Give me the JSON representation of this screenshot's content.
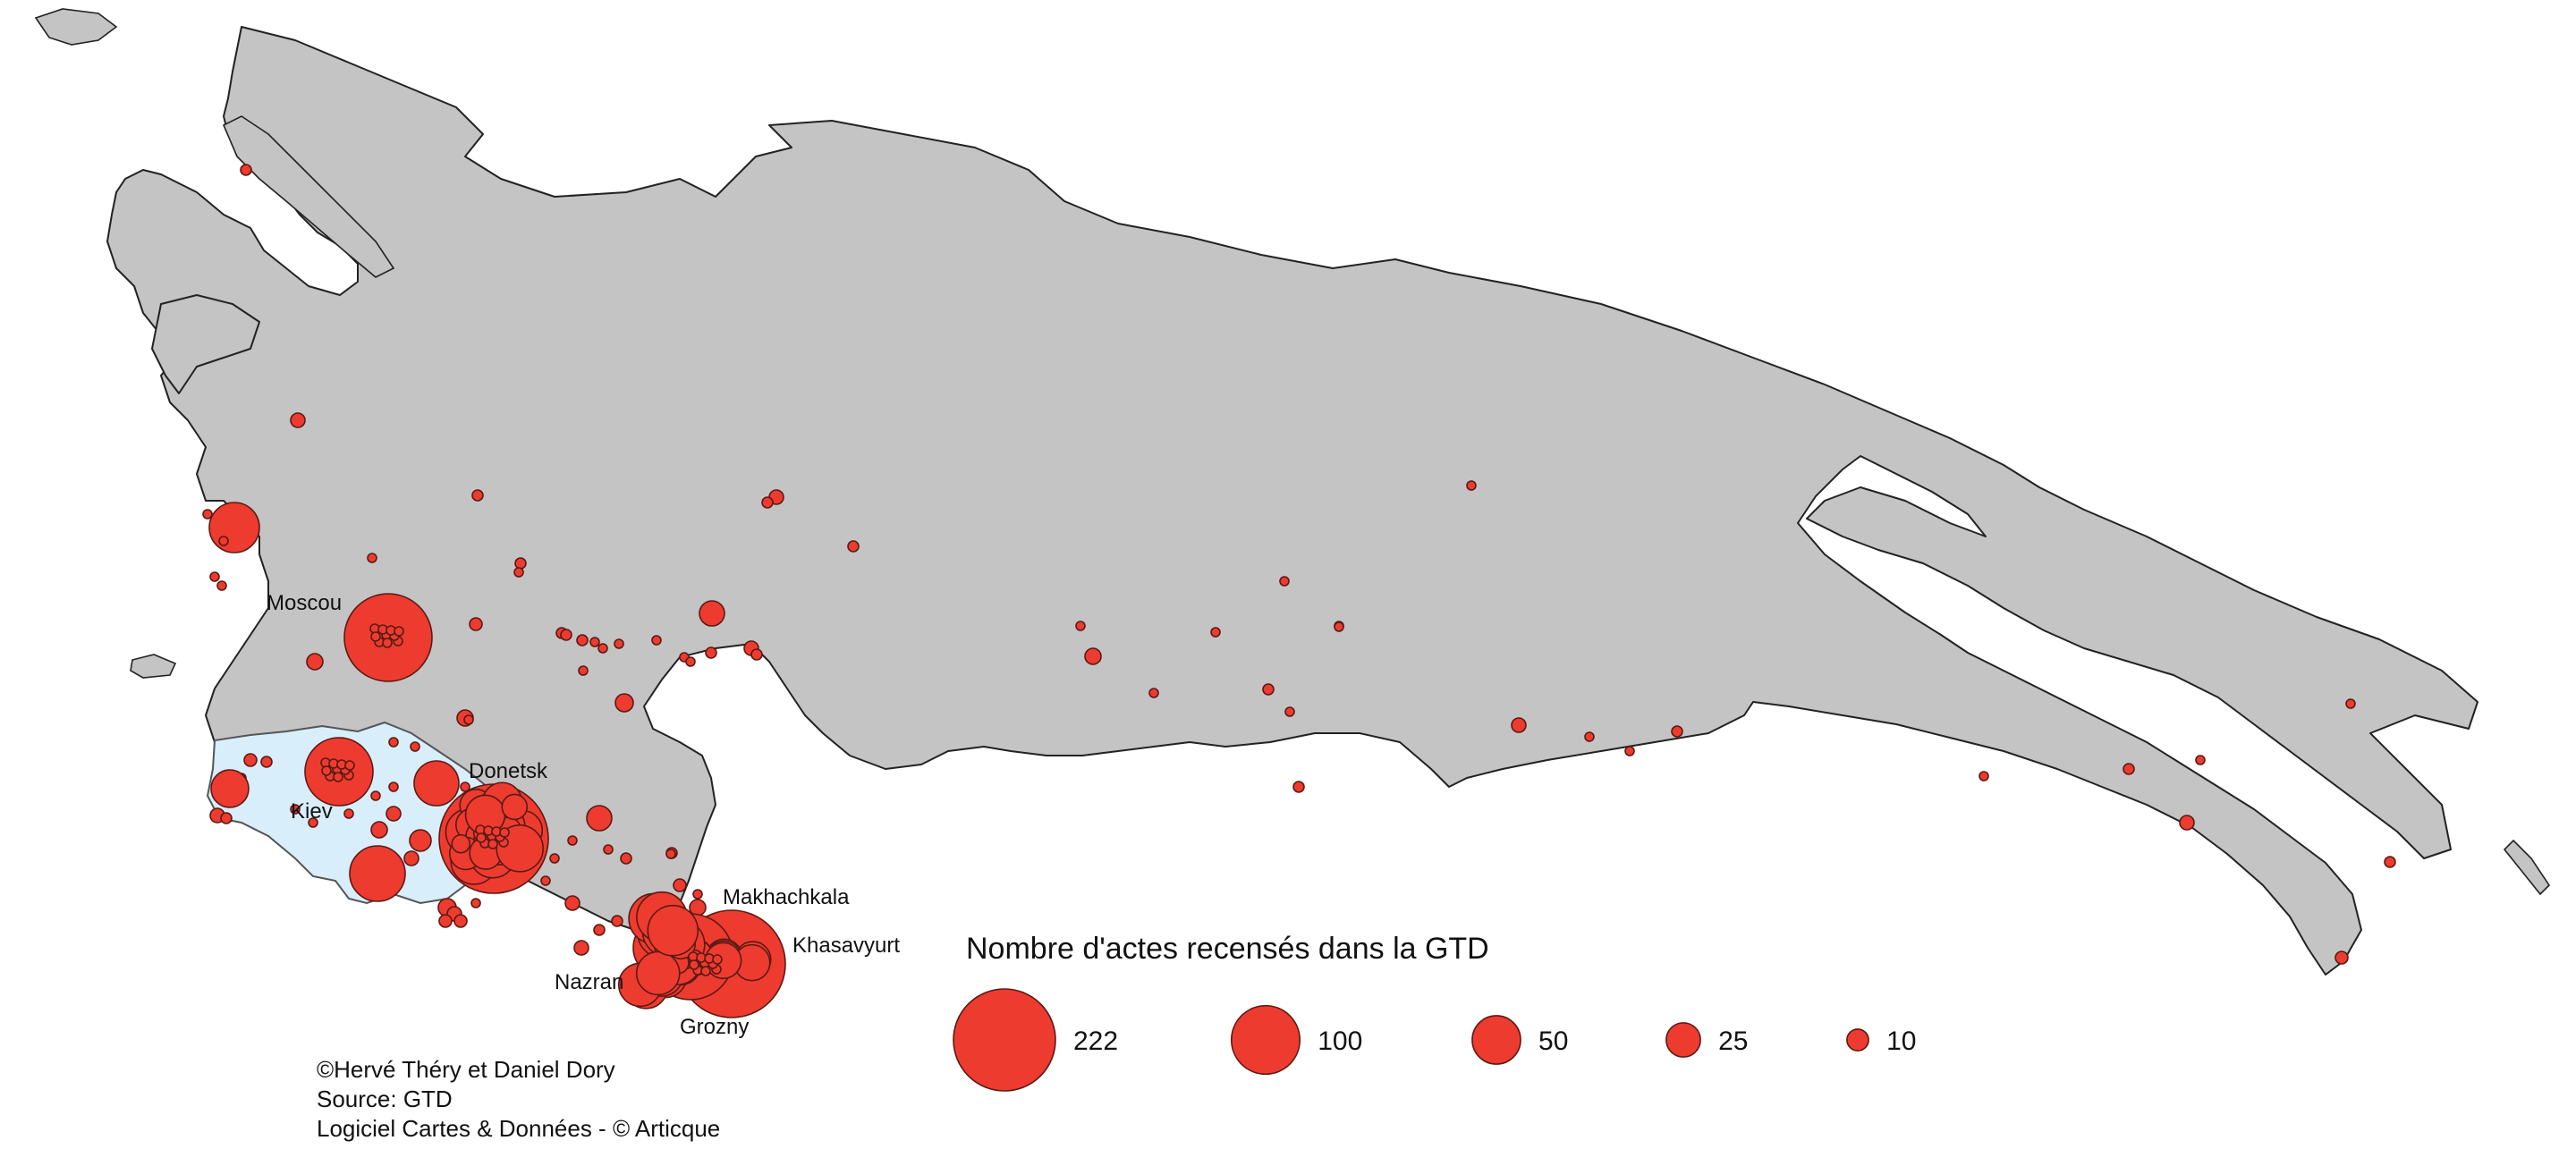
{
  "map": {
    "legend_title": "Nombre d'actes recensés dans la GTD",
    "legend": [
      {
        "value": 222,
        "label": "222"
      },
      {
        "value": 100,
        "label": "100"
      },
      {
        "value": 50,
        "label": "50"
      },
      {
        "value": 25,
        "label": "25"
      },
      {
        "value": 10,
        "label": "10"
      }
    ],
    "cities": [
      {
        "id": "moscou",
        "label": "Moscou"
      },
      {
        "id": "kiev",
        "label": "Kiev"
      },
      {
        "id": "donetsk",
        "label": "Donetsk"
      },
      {
        "id": "makhachkala",
        "label": "Makhachkala"
      },
      {
        "id": "khasavyurt",
        "label": "Khasavyurt"
      },
      {
        "id": "nazran",
        "label": "Nazran"
      },
      {
        "id": "grozny",
        "label": "Grozny"
      }
    ],
    "colors": {
      "land": "#c4c4c4",
      "ukraine": "#d9eefb",
      "symbol": "#ee3b2f"
    }
  },
  "credits": {
    "authors": "©Hervé Théry et Daniel Dory",
    "source": "Source: GTD",
    "software": "Logiciel Cartes & Données - © Articque"
  }
}
